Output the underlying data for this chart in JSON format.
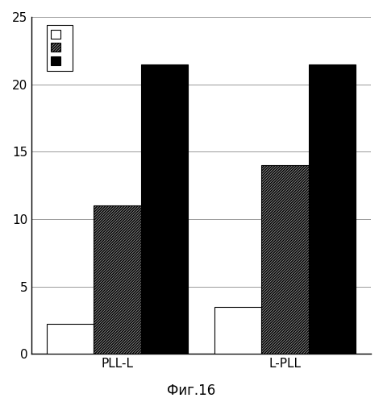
{
  "groups": [
    "PLL-L",
    "L-PLL"
  ],
  "series": [
    {
      "label": "",
      "color": "white",
      "hatch": "",
      "edgecolor": "#000000",
      "values": [
        2.2,
        3.5
      ]
    },
    {
      "label": "",
      "color": "#888888",
      "hatch": "//////////",
      "edgecolor": "#000000",
      "values": [
        11.0,
        14.0
      ]
    },
    {
      "label": "",
      "color": "black",
      "hatch": "",
      "edgecolor": "#000000",
      "values": [
        21.5,
        21.5
      ]
    }
  ],
  "ylim": [
    0,
    25
  ],
  "yticks": [
    0,
    5,
    10,
    15,
    20,
    25
  ],
  "caption": "Фиг.16",
  "bar_width": 0.28,
  "background_color": "#ffffff",
  "grid_color": "#999999"
}
